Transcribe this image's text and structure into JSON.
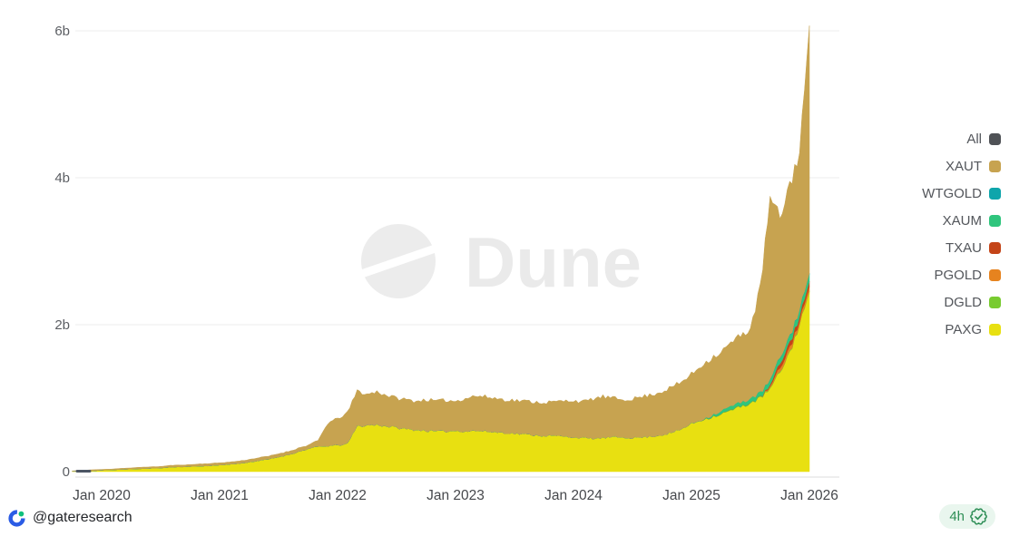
{
  "page": {
    "background": "#ffffff"
  },
  "watermark": {
    "text": "Dune"
  },
  "footer": {
    "attribution": "@gateresearch",
    "badge": {
      "age": "4h",
      "icon": "verified-seal"
    }
  },
  "chart_data": {
    "type": "area",
    "stacked": true,
    "title": "",
    "xlabel": "",
    "ylabel": "",
    "unit": "USD billions",
    "interval": "monthly",
    "x_start": "2019-10",
    "x_end": "2026-01",
    "grid": "horizontal",
    "legend_position": "right",
    "ylim": [
      0,
      6.3
    ],
    "x_ticks": [
      "Jan 2020",
      "Jan 2021",
      "Jan 2022",
      "Jan 2023",
      "Jan 2024",
      "Jan 2025",
      "Jan 2026"
    ],
    "y_ticks": [
      {
        "label": "0",
        "value": 0
      },
      {
        "label": "2b",
        "value": 2
      },
      {
        "label": "4b",
        "value": 4
      },
      {
        "label": "6b",
        "value": 6
      }
    ],
    "legend": [
      {
        "label": "All",
        "color": "#4f5256"
      },
      {
        "label": "XAUT",
        "color": "#c7a350"
      },
      {
        "label": "WTGOLD",
        "color": "#0ea5ab"
      },
      {
        "label": "XAUM",
        "color": "#2fc57d"
      },
      {
        "label": "TXAU",
        "color": "#c44418"
      },
      {
        "label": "PGOLD",
        "color": "#e6831f"
      },
      {
        "label": "DGLD",
        "color": "#78cb30"
      },
      {
        "label": "PAXG",
        "color": "#e8e011"
      }
    ],
    "series": [
      {
        "name": "PAXG",
        "color": "#e8e011",
        "values": [
          0.005,
          0.008,
          0.01,
          0.02,
          0.025,
          0.03,
          0.035,
          0.04,
          0.045,
          0.05,
          0.06,
          0.065,
          0.07,
          0.075,
          0.08,
          0.09,
          0.1,
          0.11,
          0.13,
          0.15,
          0.17,
          0.2,
          0.23,
          0.27,
          0.31,
          0.34,
          0.35,
          0.36,
          0.38,
          0.62,
          0.63,
          0.64,
          0.62,
          0.6,
          0.58,
          0.57,
          0.56,
          0.55,
          0.55,
          0.56,
          0.55,
          0.56,
          0.55,
          0.54,
          0.53,
          0.52,
          0.51,
          0.5,
          0.49,
          0.49,
          0.48,
          0.47,
          0.46,
          0.45,
          0.46,
          0.47,
          0.47,
          0.46,
          0.47,
          0.48,
          0.5,
          0.53,
          0.58,
          0.65,
          0.7,
          0.74,
          0.78,
          0.83,
          0.88,
          0.93,
          1.0,
          1.12,
          1.35,
          1.62,
          2.0,
          2.45
        ]
      },
      {
        "name": "DGLD",
        "color": "#78cb30",
        "values": [
          0,
          0,
          0,
          0,
          0,
          0,
          0,
          0,
          0,
          0,
          0,
          0,
          0,
          0,
          0,
          0,
          0,
          0,
          0,
          0,
          0,
          0,
          0,
          0,
          0,
          0,
          0,
          0,
          0,
          0,
          0,
          0,
          0,
          0,
          0,
          0,
          0,
          0,
          0,
          0,
          0,
          0,
          0,
          0,
          0,
          0,
          0,
          0,
          0,
          0,
          0,
          0,
          0,
          0,
          0,
          0,
          0,
          0,
          0,
          0,
          0,
          0,
          0,
          0.005,
          0.005,
          0.005,
          0.005,
          0.01,
          0.01,
          0.01,
          0.01,
          0.01,
          0.01,
          0.01,
          0.01,
          0.01
        ]
      },
      {
        "name": "PGOLD",
        "color": "#e6831f",
        "values": [
          0,
          0,
          0,
          0,
          0,
          0,
          0,
          0,
          0,
          0,
          0,
          0,
          0,
          0,
          0,
          0,
          0,
          0,
          0,
          0,
          0,
          0,
          0,
          0,
          0,
          0,
          0,
          0,
          0,
          0,
          0,
          0,
          0,
          0,
          0,
          0,
          0,
          0,
          0,
          0,
          0,
          0,
          0,
          0,
          0,
          0,
          0,
          0,
          0,
          0,
          0,
          0,
          0,
          0,
          0,
          0,
          0,
          0,
          0,
          0,
          0,
          0,
          0,
          0,
          0,
          0,
          0,
          0,
          0,
          0,
          0,
          0.02,
          0.05,
          0.06,
          0.05,
          0.06
        ]
      },
      {
        "name": "TXAU",
        "color": "#c44418",
        "values": [
          0,
          0,
          0,
          0,
          0,
          0,
          0,
          0,
          0,
          0,
          0,
          0,
          0,
          0,
          0,
          0,
          0,
          0,
          0,
          0,
          0,
          0,
          0,
          0,
          0,
          0,
          0,
          0,
          0,
          0,
          0,
          0,
          0,
          0,
          0,
          0,
          0,
          0,
          0,
          0,
          0,
          0,
          0,
          0,
          0,
          0,
          0,
          0,
          0,
          0,
          0,
          0,
          0,
          0,
          0,
          0,
          0,
          0,
          0,
          0,
          0,
          0,
          0,
          0,
          0,
          0,
          0,
          0,
          0,
          0,
          0,
          0.02,
          0.06,
          0.07,
          0.06,
          0.07
        ]
      },
      {
        "name": "XAUM",
        "color": "#2fc57d",
        "values": [
          0,
          0,
          0,
          0,
          0,
          0,
          0,
          0,
          0,
          0,
          0,
          0,
          0,
          0,
          0,
          0,
          0,
          0,
          0,
          0,
          0,
          0,
          0,
          0,
          0,
          0,
          0,
          0,
          0,
          0,
          0,
          0,
          0,
          0,
          0,
          0,
          0,
          0,
          0,
          0,
          0,
          0,
          0,
          0,
          0,
          0,
          0,
          0,
          0,
          0,
          0,
          0,
          0,
          0,
          0,
          0,
          0,
          0,
          0,
          0,
          0,
          0,
          0,
          0,
          0,
          0.02,
          0.04,
          0.05,
          0.05,
          0.06,
          0.06,
          0.07,
          0.08,
          0.08,
          0.09,
          0.1
        ]
      },
      {
        "name": "WTGOLD",
        "color": "#0ea5ab",
        "values": [
          0,
          0,
          0,
          0,
          0,
          0,
          0,
          0,
          0,
          0,
          0,
          0,
          0,
          0,
          0,
          0,
          0,
          0,
          0,
          0,
          0,
          0,
          0,
          0,
          0,
          0,
          0,
          0,
          0,
          0,
          0,
          0,
          0,
          0,
          0,
          0,
          0,
          0,
          0,
          0,
          0,
          0,
          0,
          0,
          0,
          0,
          0,
          0,
          0,
          0,
          0,
          0,
          0,
          0,
          0,
          0,
          0,
          0,
          0,
          0,
          0,
          0,
          0,
          0,
          0,
          0,
          0,
          0,
          0,
          0,
          0,
          0.005,
          0.005,
          0.008,
          0.008,
          0.01
        ]
      },
      {
        "name": "XAUT",
        "color": "#c7a350",
        "values": [
          0.005,
          0.01,
          0.015,
          0.01,
          0.01,
          0.015,
          0.015,
          0.02,
          0.02,
          0.02,
          0.025,
          0.025,
          0.025,
          0.03,
          0.03,
          0.03,
          0.03,
          0.035,
          0.035,
          0.04,
          0.04,
          0.045,
          0.045,
          0.05,
          0.05,
          0.08,
          0.31,
          0.36,
          0.42,
          0.48,
          0.42,
          0.45,
          0.42,
          0.4,
          0.4,
          0.39,
          0.42,
          0.41,
          0.42,
          0.4,
          0.45,
          0.47,
          0.47,
          0.46,
          0.45,
          0.45,
          0.45,
          0.45,
          0.45,
          0.46,
          0.48,
          0.5,
          0.49,
          0.54,
          0.56,
          0.53,
          0.51,
          0.53,
          0.55,
          0.57,
          0.59,
          0.62,
          0.64,
          0.67,
          0.74,
          0.78,
          0.8,
          0.86,
          0.91,
          0.95,
          1.43,
          2.46,
          1.9,
          2.06,
          2.14,
          3.37
        ]
      }
    ]
  }
}
